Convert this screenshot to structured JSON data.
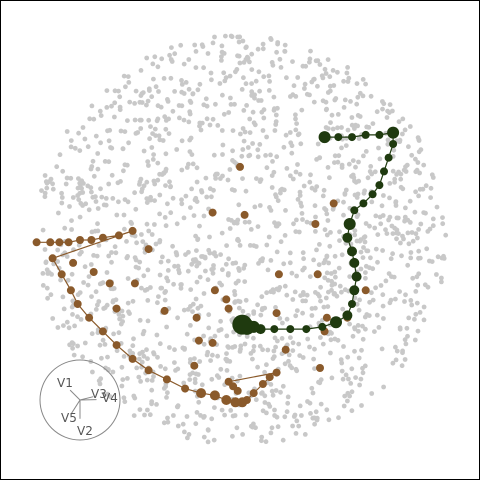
{
  "chart_data": {
    "type": "scatter",
    "title": "",
    "xlabel": "",
    "ylabel": "",
    "xlim": [
      -1.05,
      1.05
    ],
    "ylim": [
      -1.05,
      1.05
    ],
    "grid": false,
    "legend": "none",
    "background_points": {
      "count": 1600,
      "color": "#c8c8c8",
      "region": "disk",
      "radius": 0.9
    },
    "series": [
      {
        "color": "#8a5a2b",
        "connected": true,
        "points": [
          [
            -0.89,
            -0.01
          ],
          [
            -0.83,
            -0.01
          ],
          [
            -0.79,
            -0.01
          ],
          [
            -0.75,
            -0.01
          ],
          [
            -0.7,
            0.0
          ],
          [
            -0.65,
            0.0
          ],
          [
            -0.6,
            0.01
          ],
          [
            -0.53,
            0.02
          ],
          [
            -0.47,
            0.04
          ],
          [
            -0.82,
            -0.08
          ],
          [
            -0.78,
            -0.15
          ],
          [
            -0.74,
            -0.22
          ],
          [
            -0.71,
            -0.28
          ],
          [
            -0.66,
            -0.34
          ],
          [
            -0.6,
            -0.4
          ],
          [
            -0.54,
            -0.46
          ],
          [
            -0.47,
            -0.52
          ],
          [
            -0.4,
            -0.57
          ],
          [
            -0.32,
            -0.61
          ],
          [
            -0.24,
            -0.65
          ],
          [
            -0.17,
            -0.67
          ],
          [
            -0.11,
            -0.68
          ],
          [
            -0.06,
            -0.7
          ],
          [
            -0.02,
            -0.71
          ],
          [
            0.01,
            -0.71
          ],
          [
            0.03,
            -0.7
          ],
          [
            0.06,
            -0.67
          ],
          [
            0.1,
            -0.63
          ],
          [
            0.13,
            -0.6
          ],
          [
            0.16,
            -0.58
          ],
          [
            -0.05,
            -0.62
          ],
          [
            -0.03,
            -0.64
          ],
          [
            -0.01,
            -0.66
          ]
        ],
        "sizes": [
          4,
          4,
          4,
          4,
          4,
          4,
          4,
          4,
          4,
          4,
          4,
          4,
          4,
          4,
          4,
          4,
          4,
          4,
          4,
          4,
          5,
          5,
          5,
          5,
          5,
          4,
          4,
          4,
          4,
          4,
          4,
          4,
          4
        ]
      },
      {
        "color": "#8a5a2b",
        "connected": false,
        "points": [
          [
            -0.4,
            -0.04
          ],
          [
            -0.64,
            -0.14
          ],
          [
            -0.57,
            -0.19
          ],
          [
            -0.12,
            0.12
          ],
          [
            0.02,
            0.11
          ],
          [
            -0.11,
            -0.22
          ],
          [
            -0.06,
            -0.26
          ],
          [
            -0.05,
            -0.3
          ],
          [
            -0.33,
            -0.31
          ],
          [
            -0.54,
            -0.3
          ],
          [
            -0.19,
            -0.34
          ],
          [
            0.16,
            -0.32
          ],
          [
            0.17,
            -0.15
          ],
          [
            0.33,
            0.07
          ],
          [
            0.34,
            -0.15
          ],
          [
            0.38,
            -0.34
          ],
          [
            0.47,
            -0.34
          ],
          [
            0.55,
            -0.22
          ],
          [
            -0.18,
            -0.44
          ],
          [
            -0.2,
            -0.55
          ],
          [
            0.2,
            -0.48
          ],
          [
            0.35,
            -0.56
          ],
          [
            -0.12,
            -0.45
          ],
          [
            0.41,
            0.16
          ],
          [
            0.37,
            -0.4
          ],
          [
            0.0,
            0.32
          ],
          [
            -0.73,
            -0.1
          ],
          [
            -0.46,
            -0.19
          ]
        ],
        "sizes": [
          4,
          4,
          4,
          4,
          4,
          4,
          4,
          4,
          4,
          4,
          4,
          4,
          4,
          4,
          4,
          4,
          4,
          4,
          4,
          4,
          4,
          4,
          4,
          4,
          4,
          4,
          4,
          4
        ]
      },
      {
        "color": "#1f3a0f",
        "connected": true,
        "points": [
          [
            0.37,
            0.45
          ],
          [
            0.43,
            0.45
          ],
          [
            0.49,
            0.45
          ],
          [
            0.55,
            0.46
          ],
          [
            0.61,
            0.46
          ],
          [
            0.67,
            0.47
          ],
          [
            0.67,
            0.42
          ],
          [
            0.65,
            0.36
          ],
          [
            0.63,
            0.3
          ],
          [
            0.61,
            0.24
          ],
          [
            0.58,
            0.2
          ],
          [
            0.54,
            0.16
          ],
          [
            0.5,
            0.13
          ],
          [
            0.48,
            0.07
          ],
          [
            0.47,
            0.01
          ],
          [
            0.49,
            -0.05
          ],
          [
            0.5,
            -0.1
          ],
          [
            0.51,
            -0.16
          ],
          [
            0.5,
            -0.22
          ],
          [
            0.49,
            -0.28
          ],
          [
            0.47,
            -0.33
          ],
          [
            0.42,
            -0.36
          ],
          [
            0.36,
            -0.38
          ],
          [
            0.29,
            -0.39
          ],
          [
            0.22,
            -0.39
          ],
          [
            0.15,
            -0.39
          ],
          [
            0.09,
            -0.39
          ],
          [
            0.06,
            -0.38
          ],
          [
            0.03,
            -0.38
          ],
          [
            0.01,
            -0.37
          ]
        ],
        "sizes": [
          6,
          4,
          4,
          4,
          4,
          6,
          4,
          4,
          4,
          4,
          4,
          4,
          4,
          6,
          5,
          5,
          5,
          5,
          5,
          4,
          5,
          6,
          4,
          4,
          4,
          4,
          5,
          6,
          8,
          10
        ]
      }
    ],
    "biplot": {
      "labels": [
        "V1",
        "V2",
        "V3",
        "V4",
        "V5"
      ],
      "vectors": [
        [
          -0.45,
          0.45
        ],
        [
          0.0,
          -0.85
        ],
        [
          0.6,
          0.15
        ],
        [
          0.75,
          0.02
        ],
        [
          -0.38,
          -0.6
        ]
      ]
    }
  }
}
